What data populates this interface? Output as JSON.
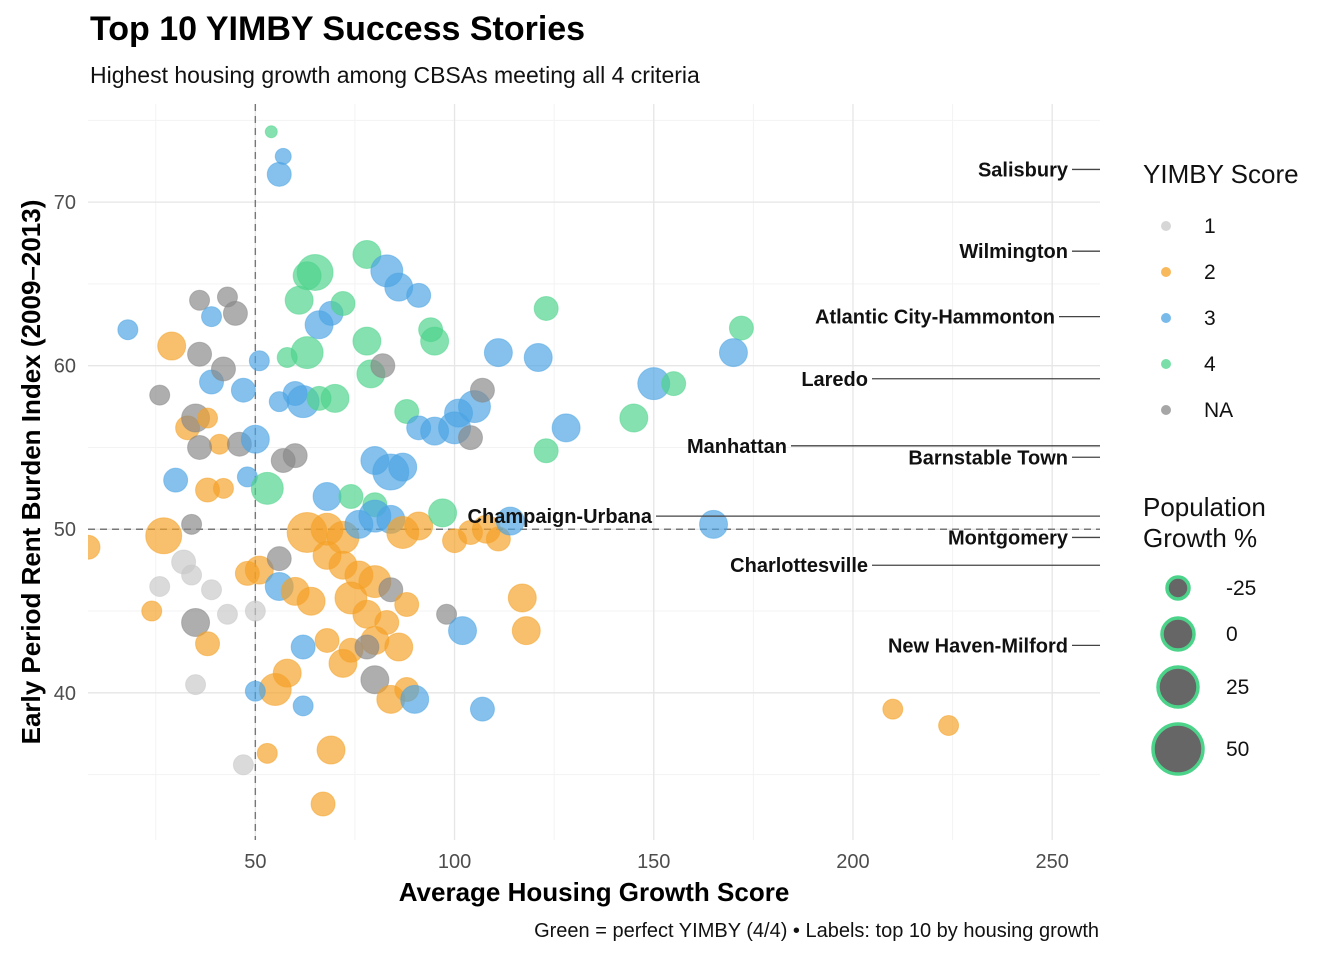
{
  "title": "Top 10 YIMBY Success Stories",
  "subtitle": "Highest housing growth among CBSAs meeting all 4 criteria",
  "caption": "Green = perfect YIMBY (4/4) • Labels: top 10 by housing growth",
  "colors": {
    "1": "#c8c8c8",
    "2": "#f4a126",
    "3": "#4ba3e3",
    "4": "#4cd38a",
    "NA": "#888888",
    "size_fill": "#666666",
    "size_stroke": "#4cd38a"
  },
  "chart_data": {
    "type": "scatter",
    "xlabel": "Average Housing Growth Score",
    "ylabel": "Early Period Rent Burden Index (2009–2013)",
    "xlim": [
      8,
      262
    ],
    "ylim": [
      31,
      76
    ],
    "x_ticks": [
      50,
      100,
      150,
      200,
      250
    ],
    "y_ticks": [
      40,
      50,
      60,
      70
    ],
    "reference_lines": {
      "x": 50,
      "y": 50,
      "style": "dashed"
    },
    "grid": true,
    "legend": {
      "color_title": "YIMBY Score",
      "color_entries": [
        "1",
        "2",
        "3",
        "4",
        "NA"
      ],
      "size_title_lines": [
        "Population",
        "Growth %"
      ],
      "size_entries": [
        -25,
        0,
        25,
        50
      ]
    },
    "labels": [
      {
        "name": "Salisbury",
        "y": 72
      },
      {
        "name": "Wilmington",
        "y": 67
      },
      {
        "name": "Atlantic City-Hammonton",
        "y": 63
      },
      {
        "name": "Laredo",
        "y": 59.2
      },
      {
        "name": "Manhattan",
        "y": 55.1
      },
      {
        "name": "Barnstable Town",
        "y": 54.4
      },
      {
        "name": "Champaign-Urbana",
        "y": 50.8
      },
      {
        "name": "Montgomery",
        "y": 49.5
      },
      {
        "name": "Charlottesville",
        "y": 47.8
      },
      {
        "name": "New Haven-Milford",
        "y": 42.9
      }
    ],
    "points": [
      [
        54,
        74.3,
        "4",
        6
      ],
      [
        57,
        72.8,
        "3",
        8
      ],
      [
        56,
        71.7,
        "3",
        12
      ],
      [
        18,
        62.2,
        "3",
        10
      ],
      [
        29,
        61.2,
        "2",
        14
      ],
      [
        36,
        64,
        "NA",
        10
      ],
      [
        43,
        64.2,
        "NA",
        10
      ],
      [
        39,
        63,
        "3",
        10
      ],
      [
        45,
        63.2,
        "NA",
        12
      ],
      [
        36,
        60.7,
        "NA",
        12
      ],
      [
        39,
        59,
        "3",
        12
      ],
      [
        42,
        59.8,
        "NA",
        12
      ],
      [
        47,
        58.5,
        "3",
        12
      ],
      [
        51,
        60.3,
        "3",
        10
      ],
      [
        26,
        58.2,
        "NA",
        10
      ],
      [
        33,
        56.2,
        "2",
        12
      ],
      [
        35,
        56.8,
        "NA",
        14
      ],
      [
        38,
        56.8,
        "2",
        10
      ],
      [
        41,
        55.2,
        "2",
        10
      ],
      [
        36,
        55,
        "NA",
        12
      ],
      [
        46,
        55.2,
        "NA",
        12
      ],
      [
        50,
        55.5,
        "3",
        14
      ],
      [
        30,
        53,
        "3",
        12
      ],
      [
        38,
        52.4,
        "2",
        12
      ],
      [
        42,
        52.5,
        "2",
        10
      ],
      [
        34,
        50.3,
        "NA",
        10
      ],
      [
        48,
        53.2,
        "3",
        10
      ],
      [
        53,
        52.5,
        "4",
        16
      ],
      [
        57,
        54.2,
        "NA",
        12
      ],
      [
        60,
        54.5,
        "NA",
        12
      ],
      [
        56,
        57.8,
        "3",
        10
      ],
      [
        60,
        58.3,
        "3",
        12
      ],
      [
        62,
        57.8,
        "3",
        16
      ],
      [
        66,
        58,
        "4",
        12
      ],
      [
        70,
        58,
        "4",
        14
      ],
      [
        58,
        60.5,
        "4",
        10
      ],
      [
        63,
        60.8,
        "4",
        16
      ],
      [
        66,
        62.5,
        "3",
        14
      ],
      [
        69,
        63.2,
        "3",
        12
      ],
      [
        72,
        63.8,
        "4",
        12
      ],
      [
        78,
        61.5,
        "4",
        14
      ],
      [
        79,
        59.5,
        "4",
        14
      ],
      [
        82,
        60,
        "NA",
        12
      ],
      [
        63,
        65.5,
        "4",
        14
      ],
      [
        65,
        65.7,
        "4",
        18
      ],
      [
        61,
        64,
        "4",
        14
      ],
      [
        78,
        66.8,
        "4",
        14
      ],
      [
        83,
        65.8,
        "3",
        16
      ],
      [
        86,
        64.8,
        "3",
        14
      ],
      [
        91,
        64.3,
        "3",
        12
      ],
      [
        94,
        62.2,
        "4",
        12
      ],
      [
        95,
        61.5,
        "4",
        14
      ],
      [
        88,
        57.2,
        "4",
        12
      ],
      [
        91,
        56.2,
        "3",
        12
      ],
      [
        95,
        56,
        "3",
        14
      ],
      [
        100,
        56.2,
        "3",
        16
      ],
      [
        104,
        55.6,
        "NA",
        12
      ],
      [
        101,
        57.1,
        "3",
        14
      ],
      [
        105,
        57.5,
        "3",
        16
      ],
      [
        107,
        58.5,
        "NA",
        12
      ],
      [
        111,
        60.8,
        "3",
        14
      ],
      [
        121,
        60.5,
        "3",
        14
      ],
      [
        123,
        63.5,
        "4",
        12
      ],
      [
        128,
        56.2,
        "3",
        14
      ],
      [
        123,
        54.8,
        "4",
        12
      ],
      [
        145,
        56.8,
        "4",
        14
      ],
      [
        150,
        58.9,
        "3",
        16
      ],
      [
        155,
        58.9,
        "4",
        12
      ],
      [
        172,
        62.3,
        "4",
        12
      ],
      [
        170,
        60.8,
        "3",
        14
      ],
      [
        80,
        54.2,
        "3",
        14
      ],
      [
        84,
        53.5,
        "3",
        18
      ],
      [
        87,
        53.8,
        "3",
        14
      ],
      [
        68,
        52,
        "3",
        14
      ],
      [
        74,
        52,
        "4",
        12
      ],
      [
        80,
        51.5,
        "4",
        12
      ],
      [
        63,
        49.8,
        "2",
        20
      ],
      [
        68,
        50,
        "2",
        16
      ],
      [
        72,
        49.5,
        "2",
        16
      ],
      [
        76,
        50.3,
        "3",
        14
      ],
      [
        80,
        50.8,
        "3",
        16
      ],
      [
        84,
        50.6,
        "3",
        14
      ],
      [
        87,
        49.8,
        "2",
        16
      ],
      [
        91,
        50.2,
        "2",
        14
      ],
      [
        97,
        51,
        "4",
        14
      ],
      [
        100,
        49.3,
        "2",
        12
      ],
      [
        104,
        49.8,
        "2",
        12
      ],
      [
        108,
        50,
        "2",
        14
      ],
      [
        111,
        49.4,
        "2",
        12
      ],
      [
        114,
        50.5,
        "3",
        14
      ],
      [
        165,
        50.3,
        "3",
        14
      ],
      [
        27,
        49.6,
        "2",
        18
      ],
      [
        32,
        48,
        "1",
        12
      ],
      [
        34,
        47.2,
        "1",
        10
      ],
      [
        26,
        46.5,
        "1",
        10
      ],
      [
        39,
        46.3,
        "1",
        10
      ],
      [
        43,
        44.8,
        "1",
        10
      ],
      [
        50,
        45,
        "1",
        10
      ],
      [
        24,
        45,
        "2",
        10
      ],
      [
        35,
        44.3,
        "NA",
        14
      ],
      [
        38,
        43,
        "2",
        12
      ],
      [
        48,
        47.3,
        "2",
        12
      ],
      [
        51,
        47.5,
        "2",
        14
      ],
      [
        56,
        48.2,
        "NA",
        12
      ],
      [
        56,
        46.5,
        "3",
        14
      ],
      [
        60,
        46.2,
        "2",
        14
      ],
      [
        64,
        45.6,
        "2",
        14
      ],
      [
        68,
        48.4,
        "2",
        14
      ],
      [
        72,
        47.8,
        "2",
        14
      ],
      [
        76,
        47.2,
        "2",
        14
      ],
      [
        80,
        46.8,
        "2",
        16
      ],
      [
        84,
        46.3,
        "NA",
        12
      ],
      [
        88,
        45.4,
        "2",
        12
      ],
      [
        74,
        45.8,
        "2",
        16
      ],
      [
        78,
        44.8,
        "2",
        14
      ],
      [
        83,
        44.3,
        "2",
        12
      ],
      [
        68,
        43.2,
        "2",
        12
      ],
      [
        74,
        42.6,
        "2",
        12
      ],
      [
        80,
        43.2,
        "2",
        14
      ],
      [
        86,
        42.8,
        "2",
        14
      ],
      [
        62,
        42.8,
        "3",
        12
      ],
      [
        58,
        41.2,
        "2",
        14
      ],
      [
        55,
        40.2,
        "2",
        16
      ],
      [
        50,
        40.1,
        "3",
        10
      ],
      [
        62,
        39.2,
        "3",
        10
      ],
      [
        72,
        41.8,
        "2",
        14
      ],
      [
        78,
        42.8,
        "NA",
        12
      ],
      [
        80,
        40.8,
        "NA",
        14
      ],
      [
        84,
        39.6,
        "2",
        14
      ],
      [
        88,
        40.2,
        "2",
        12
      ],
      [
        90,
        39.6,
        "3",
        14
      ],
      [
        98,
        44.8,
        "NA",
        10
      ],
      [
        102,
        43.8,
        "3",
        14
      ],
      [
        107,
        39,
        "3",
        12
      ],
      [
        117,
        45.8,
        "2",
        14
      ],
      [
        118,
        43.8,
        "2",
        14
      ],
      [
        35,
        40.5,
        "1",
        10
      ],
      [
        47,
        35.6,
        "1",
        10
      ],
      [
        53,
        36.3,
        "2",
        10
      ],
      [
        69,
        36.5,
        "2",
        14
      ],
      [
        67,
        33.2,
        "2",
        12
      ],
      [
        8,
        48.9,
        "2",
        12
      ],
      [
        210,
        39,
        "2",
        10
      ],
      [
        224,
        38,
        "2",
        10
      ]
    ]
  }
}
